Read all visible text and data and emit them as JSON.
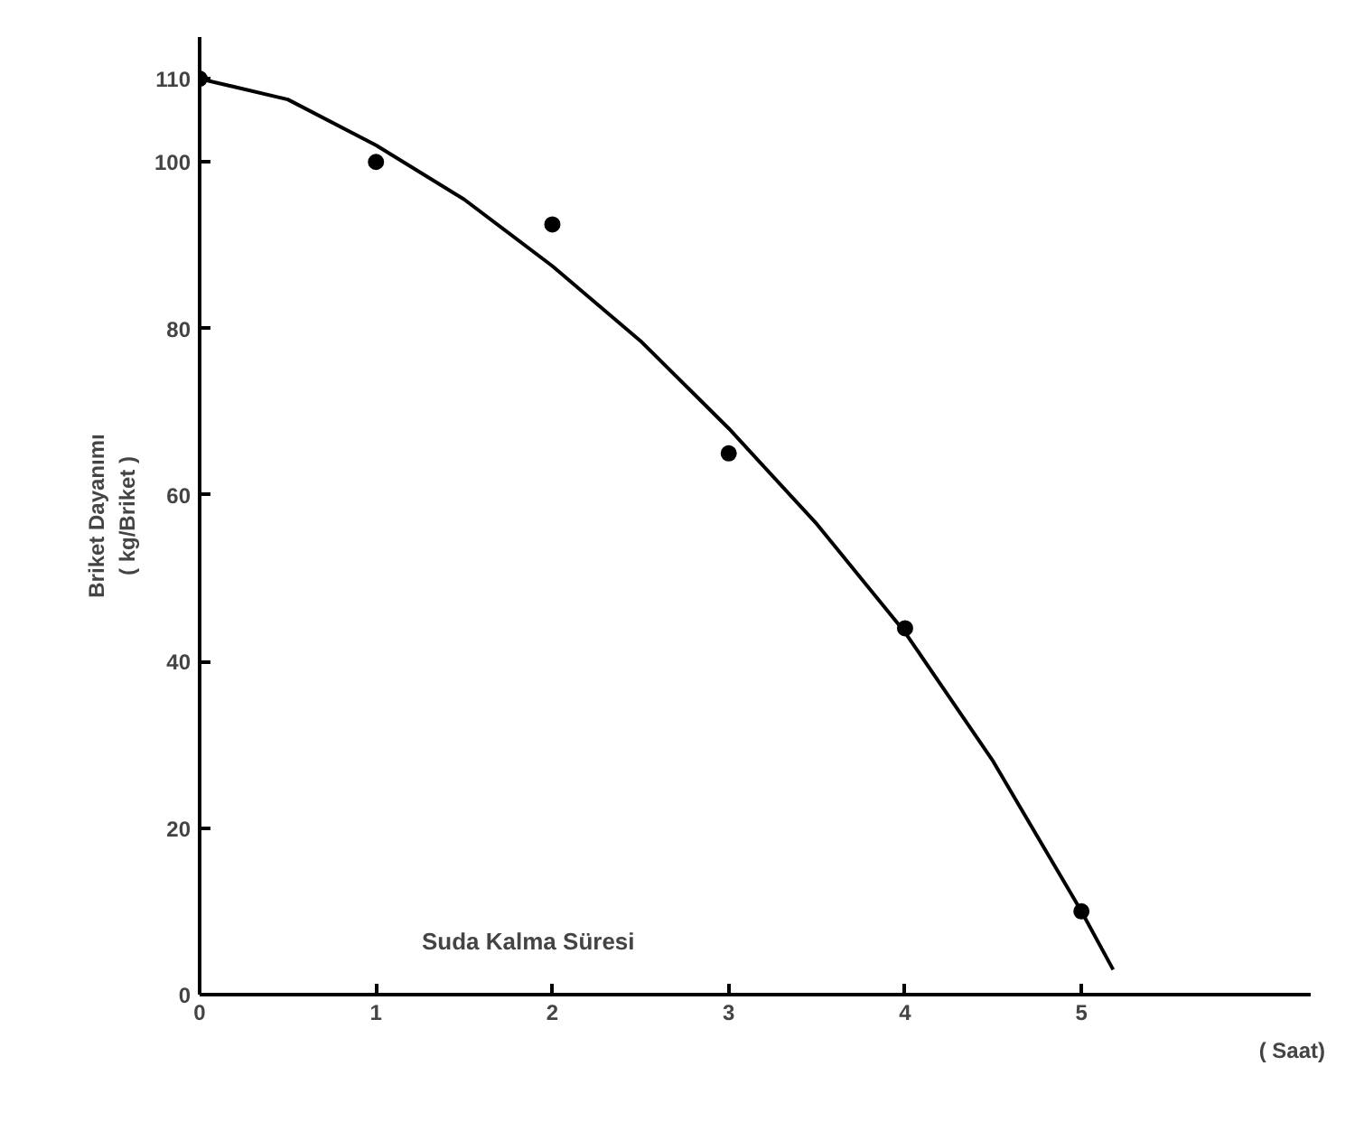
{
  "chart_data": {
    "type": "scatter",
    "xlabel": "Suda Kalma Süresi",
    "ylabel": "Briket Dayanımı\n( kg/Briket )",
    "annotations": [
      "( Saat)"
    ],
    "series": [
      {
        "color": "#000000",
        "x": [
          0,
          1,
          2,
          3,
          4,
          5
        ],
        "values": [
          110,
          100,
          92.5,
          65,
          44,
          10
        ],
        "marker": "circle"
      },
      {
        "type": "line",
        "color": "#000000",
        "x": [
          0,
          0.5,
          1,
          1.5,
          2,
          2.5,
          3,
          3.5,
          4,
          4.5,
          5,
          5.18
        ],
        "values": [
          110,
          107.5,
          102,
          95.5,
          87.5,
          78.5,
          68,
          56.5,
          43.5,
          28,
          10,
          3
        ],
        "line_style": "solid"
      }
    ],
    "xlim": [
      0,
      6.3
    ],
    "ylim": [
      0,
      115
    ],
    "xticks": [
      0,
      1,
      2,
      3,
      4,
      5
    ],
    "yticks": [
      0,
      20,
      40,
      60,
      80,
      100,
      110
    ],
    "grid": false
  }
}
